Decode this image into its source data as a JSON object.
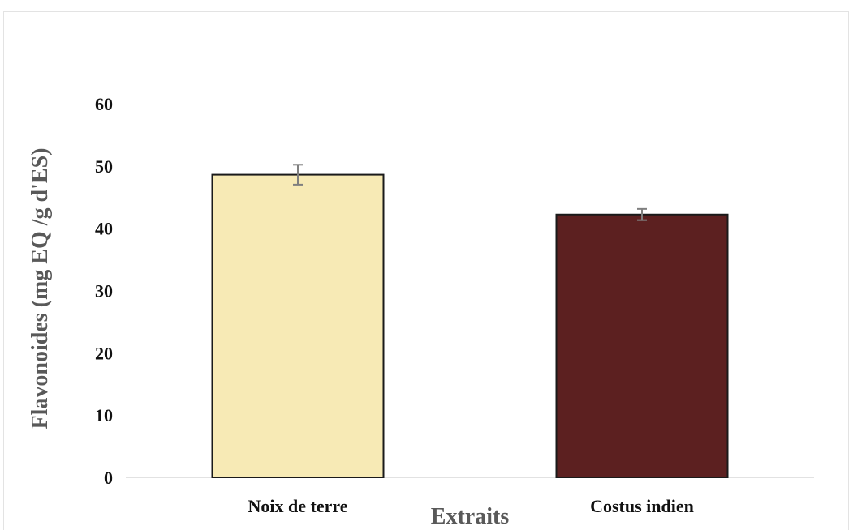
{
  "chart_data": {
    "type": "bar",
    "title": "",
    "xlabel": "Extraits",
    "ylabel": "Flavonoides (mg EQ /g d'ES)",
    "ylim": [
      0,
      60
    ],
    "yticks": [
      0,
      10,
      20,
      30,
      40,
      50,
      60
    ],
    "categories": [
      "Noix de terre",
      "Costus indien"
    ],
    "values": [
      48.6,
      42.2
    ],
    "errors": [
      1.6,
      0.9
    ],
    "colors": [
      "#f7eab5",
      "#5c2020"
    ],
    "edge_color": "#1a1a1a",
    "error_bar_color": "#7f7f7f",
    "grid": false,
    "legend": false
  }
}
